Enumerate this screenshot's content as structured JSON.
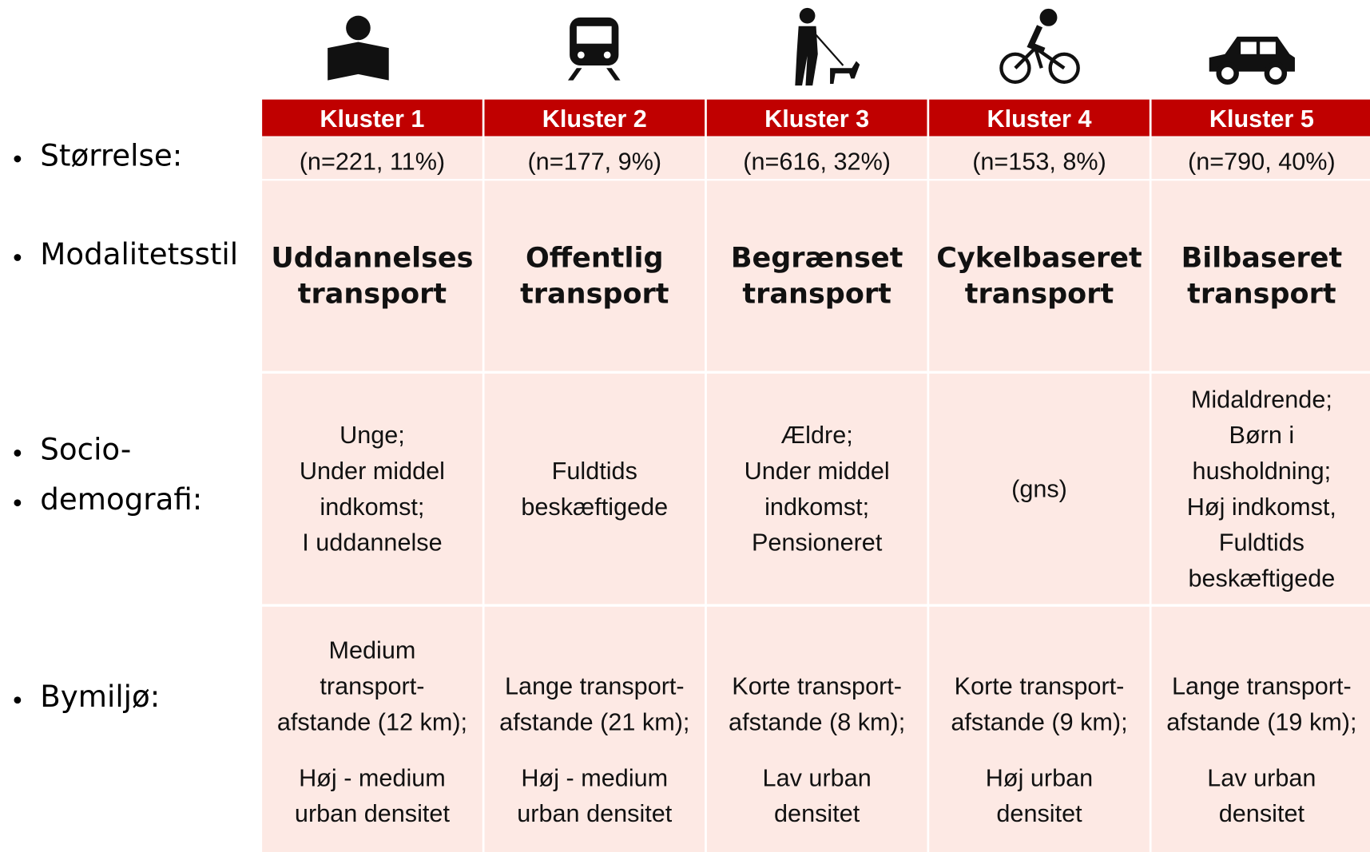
{
  "row_labels": [
    "Størrelse:",
    "Modalitetsstil",
    "Socio-",
    "demografi:",
    "Bymiljø:"
  ],
  "clusters": [
    {
      "name": "Kluster 1",
      "size": "(n=221, 11%)",
      "style": [
        "Uddannelses",
        "transport"
      ],
      "socio": [
        "Unge;",
        "Under middel",
        "indkomst;",
        "I uddannelse"
      ],
      "distance": [
        "Medium",
        "transport-",
        "afstande (12 km);"
      ],
      "density": [
        "Høj - medium",
        "urban densitet"
      ]
    },
    {
      "name": "Kluster 2",
      "size": "(n=177, 9%)",
      "style": [
        "Offentlig",
        "transport"
      ],
      "socio": [
        "Fuldtids",
        "beskæftigede"
      ],
      "distance": [
        "Lange transport-",
        "afstande (21 km);"
      ],
      "density": [
        "Høj - medium",
        "urban densitet"
      ]
    },
    {
      "name": "Kluster 3",
      "size": "(n=616, 32%)",
      "style": [
        "Begrænset",
        "transport"
      ],
      "socio": [
        "Ældre;",
        "Under middel",
        "indkomst;",
        "Pensioneret"
      ],
      "distance": [
        "Korte transport-",
        "afstande (8 km);"
      ],
      "density": [
        "Lav urban",
        "densitet"
      ]
    },
    {
      "name": "Kluster 4",
      "size": "(n=153, 8%)",
      "style": [
        "Cykelbaseret",
        "transport"
      ],
      "socio": [
        "(gns)"
      ],
      "distance": [
        "Korte transport-",
        "afstande (9 km);"
      ],
      "density": [
        "Høj urban",
        "densitet"
      ]
    },
    {
      "name": "Kluster 5",
      "size": "(n=790, 40%)",
      "style": [
        "Bilbaseret",
        "transport"
      ],
      "socio": [
        "Midaldrende;",
        "Børn i",
        "husholdning;",
        "Høj indkomst,",
        "Fuldtids",
        "beskæftigede"
      ],
      "distance": [
        "Lange transport-",
        "afstande (19 km);"
      ],
      "density": [
        "Lav urban",
        "densitet"
      ]
    }
  ]
}
